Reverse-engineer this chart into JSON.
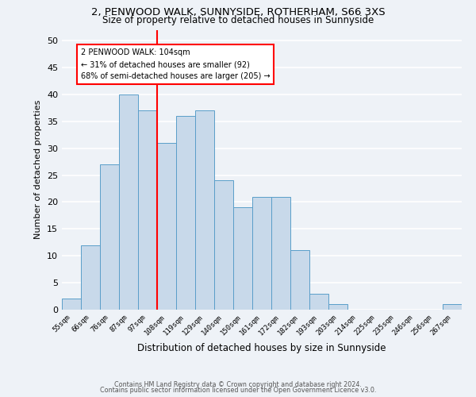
{
  "title1": "2, PENWOOD WALK, SUNNYSIDE, ROTHERHAM, S66 3XS",
  "title2": "Size of property relative to detached houses in Sunnyside",
  "xlabel": "Distribution of detached houses by size in Sunnyside",
  "ylabel": "Number of detached properties",
  "bar_labels": [
    "55sqm",
    "66sqm",
    "76sqm",
    "87sqm",
    "97sqm",
    "108sqm",
    "119sqm",
    "129sqm",
    "140sqm",
    "150sqm",
    "161sqm",
    "172sqm",
    "182sqm",
    "193sqm",
    "203sqm",
    "214sqm",
    "225sqm",
    "235sqm",
    "246sqm",
    "256sqm",
    "267sqm"
  ],
  "bar_values": [
    2,
    12,
    27,
    40,
    37,
    31,
    36,
    37,
    24,
    19,
    21,
    21,
    11,
    3,
    1,
    0,
    0,
    0,
    0,
    0,
    1
  ],
  "bar_color": "#c8d9ea",
  "bar_edgecolor": "#5a9ec9",
  "redline_index": 5,
  "redline_label": "2 PENWOOD WALK: 104sqm",
  "annotation_line2": "← 31% of detached houses are smaller (92)",
  "annotation_line3": "68% of semi-detached houses are larger (205) →",
  "annotation_box_facecolor": "white",
  "annotation_box_edgecolor": "red",
  "ylim": [
    0,
    52
  ],
  "yticks": [
    0,
    5,
    10,
    15,
    20,
    25,
    30,
    35,
    40,
    45,
    50
  ],
  "footnote1": "Contains HM Land Registry data © Crown copyright and database right 2024.",
  "footnote2": "Contains public sector information licensed under the Open Government Licence v3.0.",
  "bg_color": "#eef2f7",
  "grid_color": "white"
}
